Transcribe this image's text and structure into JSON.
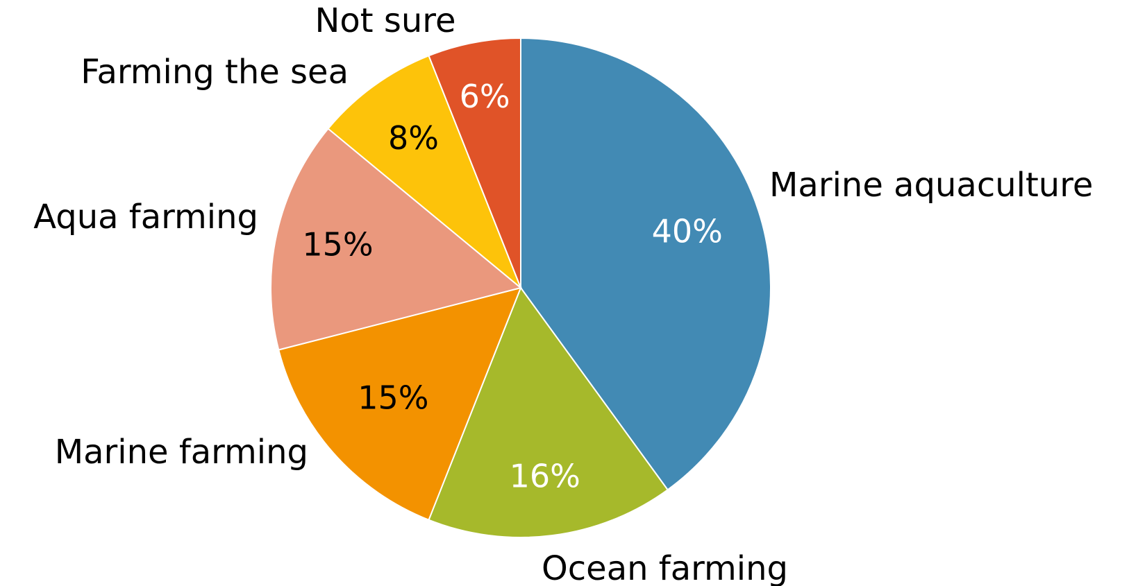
{
  "chart_data": {
    "type": "pie",
    "title": "",
    "start": "top, clockwise",
    "slices": [
      {
        "label": "Marine aquaculture",
        "value": 40,
        "value_text": "40%",
        "color": "#428AB4",
        "text_color": "#ffffff"
      },
      {
        "label": "Ocean farming",
        "value": 16,
        "value_text": "16%",
        "color": "#A6B92B",
        "text_color": "#ffffff"
      },
      {
        "label": "Marine farming",
        "value": 15,
        "value_text": "15%",
        "color": "#F39200",
        "text_color": "#000000"
      },
      {
        "label": "Aqua farming",
        "value": 15,
        "value_text": "15%",
        "color": "#EA987D",
        "text_color": "#000000"
      },
      {
        "label": "Farming the sea",
        "value": 8,
        "value_text": "8%",
        "color": "#FDC30A",
        "text_color": "#000000"
      },
      {
        "label": "Not sure",
        "value": 6,
        "value_text": "6%",
        "color": "#E05328",
        "text_color": "#ffffff"
      }
    ]
  }
}
